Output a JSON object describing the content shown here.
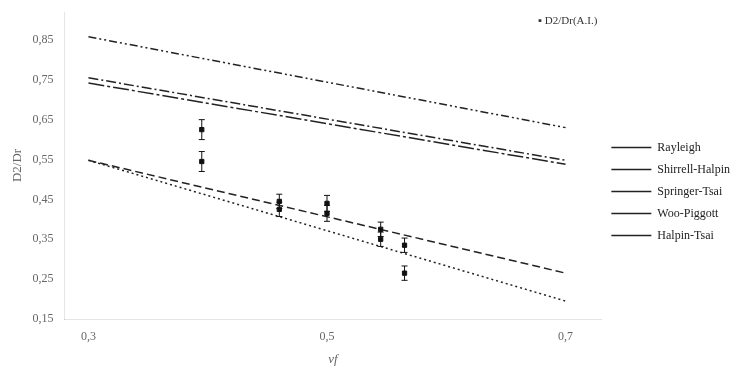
{
  "chart_data": {
    "type": "line",
    "x_label": "vf",
    "y_label": "D2/Dr",
    "annotation": "▪ D2/Dr(A.I.)",
    "xlim": [
      0.28,
      0.73
    ],
    "ylim": [
      0.15,
      0.92
    ],
    "xticks": [
      {
        "value": 0.3,
        "label": "0,3"
      },
      {
        "value": 0.5,
        "label": "0,5"
      },
      {
        "value": 0.7,
        "label": "0,7"
      }
    ],
    "yticks": [
      {
        "value": 0.15,
        "label": "0,15"
      },
      {
        "value": 0.25,
        "label": "0,25"
      },
      {
        "value": 0.35,
        "label": "0,35"
      },
      {
        "value": 0.45,
        "label": "0,45"
      },
      {
        "value": 0.55,
        "label": "0,55"
      },
      {
        "value": 0.65,
        "label": "0,65"
      },
      {
        "value": 0.75,
        "label": "0,75"
      },
      {
        "value": 0.85,
        "label": "0,85"
      }
    ],
    "grid": false,
    "legend": "right",
    "series": [
      {
        "name": "Rayleigh",
        "color": "#222222",
        "line_style": "dashdotdot",
        "x": [
          0.3,
          0.7
        ],
        "values": [
          0.858,
          0.63
        ]
      },
      {
        "name": "Shirrell-Halpin",
        "color": "#222222",
        "line_style": "dashdot",
        "x": [
          0.3,
          0.7
        ],
        "values": [
          0.755,
          0.548
        ]
      },
      {
        "name": "Springer-Tsai",
        "color": "#222222",
        "line_style": "longdashdot",
        "x": [
          0.3,
          0.7
        ],
        "values": [
          0.742,
          0.538
        ]
      },
      {
        "name": "Woo-Piggott",
        "color": "#222222",
        "line_style": "dashed",
        "x": [
          0.3,
          0.7
        ],
        "values": [
          0.548,
          0.265
        ]
      },
      {
        "name": "Halpin-Tsai",
        "color": "#222222",
        "line_style": "dotted",
        "x": [
          0.3,
          0.7
        ],
        "values": [
          0.548,
          0.195
        ]
      },
      {
        "type": "scatter",
        "marker": "square",
        "color": "#111111",
        "x": [
          0.395,
          0.395,
          0.46,
          0.46,
          0.5,
          0.5,
          0.545,
          0.545,
          0.565,
          0.565
        ],
        "values": [
          0.625,
          0.545,
          0.445,
          0.425,
          0.44,
          0.415,
          0.375,
          0.35,
          0.335,
          0.265
        ],
        "yerr": [
          0.025,
          0.025,
          0.018,
          0.018,
          0.02,
          0.02,
          0.018,
          0.018,
          0.018,
          0.018
        ]
      }
    ]
  }
}
